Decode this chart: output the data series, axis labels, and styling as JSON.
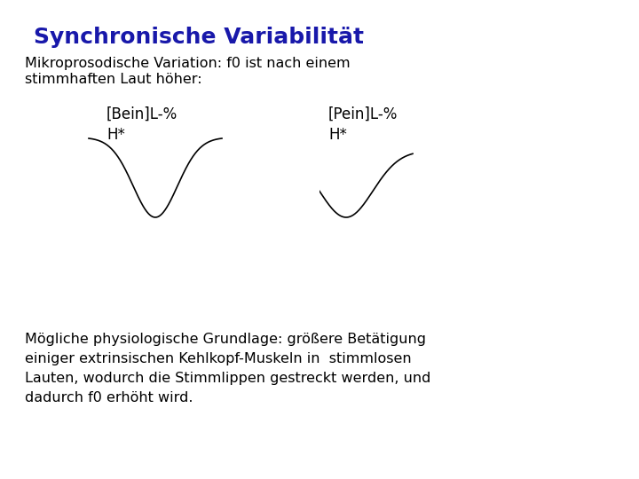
{
  "title": "Synchronische Variabilität",
  "title_color": "#1818AA",
  "title_fontsize": 18,
  "subtitle_line1": "Mikroprosodische Variation: f0 ist nach einem",
  "subtitle_line2": "stimmhaften Laut höher:",
  "label_left": "[Bein]L-%",
  "label_right": "[Pein]L-%",
  "h_label_left": "H*",
  "h_label_right": "H*",
  "bottom_text_line1": "Mögliche physiologische Grundlage: größere Betätigung",
  "bottom_text_line2": "einiger extrinsischen Kehlkopf-Muskeln in  stimmlosen",
  "bottom_text_line3": "Lauten, wodurch die Stimmlippen gestreckt werden, und",
  "bottom_text_line4": "dadurch f0 erhöht wird.",
  "bg_color": "#ffffff",
  "text_color": "#000000",
  "curve_color": "#000000",
  "body_fontsize": 11.5,
  "label_fontsize": 12
}
